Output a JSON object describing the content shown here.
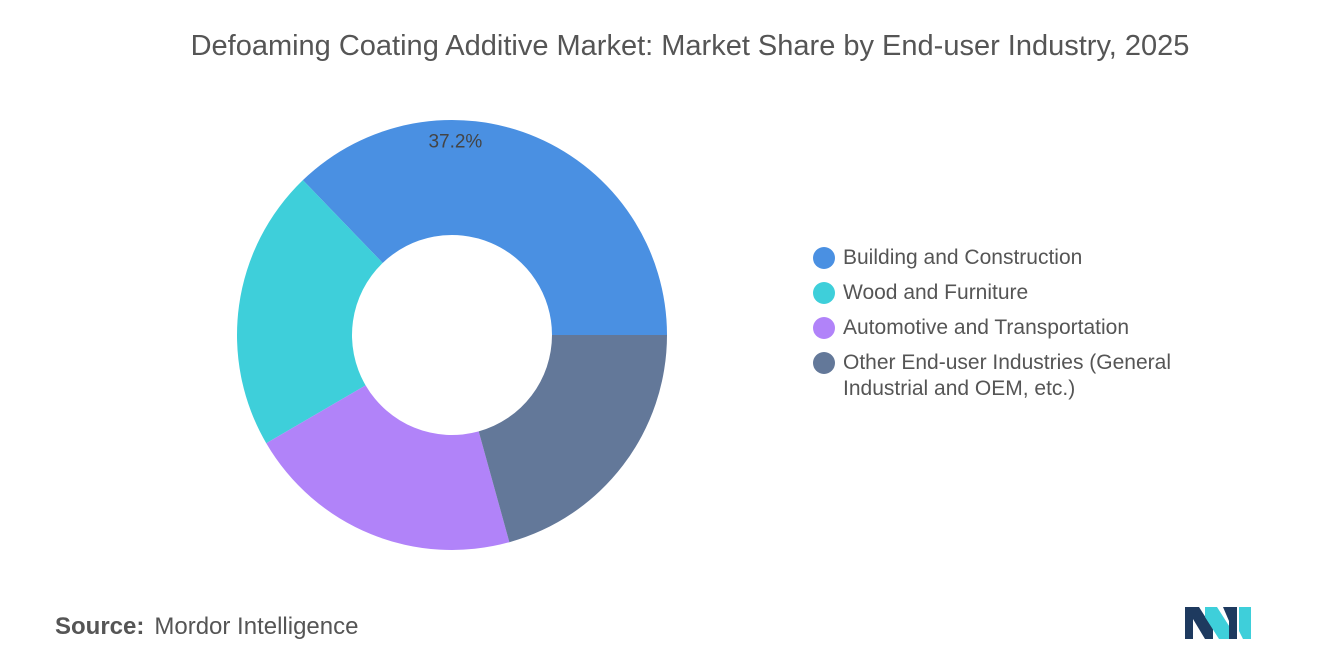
{
  "chart_data": {
    "type": "pie",
    "subtype": "donut",
    "title": "Defoaming Coating Additive Market: Market Share by End-user Industry, 2025",
    "categories": [
      "Building and Construction",
      "Wood and Furniture",
      "Automotive and Transportation",
      "Other End-user Industries (General Industrial and OEM, etc.)"
    ],
    "values": [
      37.2,
      21.2,
      20.9,
      20.7
    ],
    "colors": [
      "#4a90e2",
      "#3ecfda",
      "#b183f9",
      "#637899"
    ],
    "data_labels": [
      "37.2%",
      "",
      "",
      ""
    ],
    "legend_position": "right"
  },
  "source": {
    "label": "Source:",
    "value": "Mordor Intelligence"
  },
  "logo_colors": [
    "#1e3a5f",
    "#3ecfda"
  ]
}
